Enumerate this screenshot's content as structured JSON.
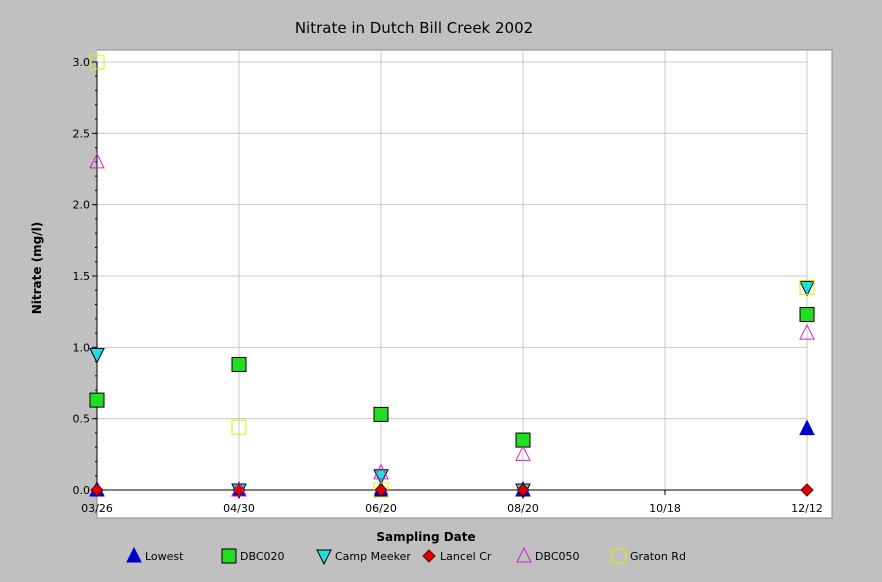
{
  "chart_data": {
    "type": "scatter",
    "title": "Nitrate in Dutch Bill Creek 2002",
    "xlabel": "Sampling Date",
    "ylabel": "Nitrate (mg/l)",
    "x_ticks": [
      "03/26",
      "04/30",
      "06/20",
      "08/20",
      "10/18",
      "12/12"
    ],
    "ylim": [
      0,
      3.0
    ],
    "y_ticks": [
      "0.0",
      "0.5",
      "1.0",
      "1.5",
      "2.0",
      "2.5",
      "3.0"
    ],
    "grid": true,
    "legend_position": "bottom",
    "series": [
      {
        "name": "Lowest",
        "marker": "triangle-up",
        "color": "#0000cc",
        "fill": "#0000cc",
        "points": [
          {
            "x": "03/26",
            "y": 0.0
          },
          {
            "x": "04/30",
            "y": 0.0
          },
          {
            "x": "06/20",
            "y": 0.0
          },
          {
            "x": "08/20",
            "y": 0.0
          },
          {
            "x": "12/12",
            "y": 0.43
          }
        ]
      },
      {
        "name": "DBC020",
        "marker": "square",
        "color": "#000000",
        "fill": "#22dd22",
        "points": [
          {
            "x": "03/26",
            "y": 0.63
          },
          {
            "x": "04/30",
            "y": 0.88
          },
          {
            "x": "06/20",
            "y": 0.53
          },
          {
            "x": "08/20",
            "y": 0.35
          },
          {
            "x": "12/12",
            "y": 1.23
          }
        ]
      },
      {
        "name": "Camp Meeker",
        "marker": "triangle-down",
        "color": "#000000",
        "fill": "#22dddd",
        "points": [
          {
            "x": "03/26",
            "y": 0.95
          },
          {
            "x": "04/30",
            "y": 0.0
          },
          {
            "x": "06/20",
            "y": 0.1
          },
          {
            "x": "08/20",
            "y": 0.0
          },
          {
            "x": "12/12",
            "y": 1.42
          }
        ]
      },
      {
        "name": "Lancel Cr",
        "marker": "diamond",
        "color": "#660000",
        "fill": "#dd0000",
        "points": [
          {
            "x": "03/26",
            "y": 0.0
          },
          {
            "x": "04/30",
            "y": 0.0
          },
          {
            "x": "06/20",
            "y": 0.0
          },
          {
            "x": "08/20",
            "y": 0.0
          },
          {
            "x": "12/12",
            "y": 0.0
          }
        ]
      },
      {
        "name": "DBC050",
        "marker": "triangle-up-open",
        "color": "#cc22cc",
        "fill": "none",
        "points": [
          {
            "x": "03/26",
            "y": 2.3
          },
          {
            "x": "04/30",
            "y": 0.0
          },
          {
            "x": "06/20",
            "y": 0.12
          },
          {
            "x": "08/20",
            "y": 0.25
          },
          {
            "x": "12/12",
            "y": 1.1
          }
        ]
      },
      {
        "name": "Graton Rd",
        "marker": "square-open",
        "color": "#e8e800",
        "fill": "none",
        "points": [
          {
            "x": "03/26",
            "y": 3.0
          },
          {
            "x": "04/30",
            "y": 0.44
          },
          {
            "x": "06/20",
            "y": 0.0
          },
          {
            "x": "12/12",
            "y": 1.42
          }
        ]
      }
    ]
  }
}
